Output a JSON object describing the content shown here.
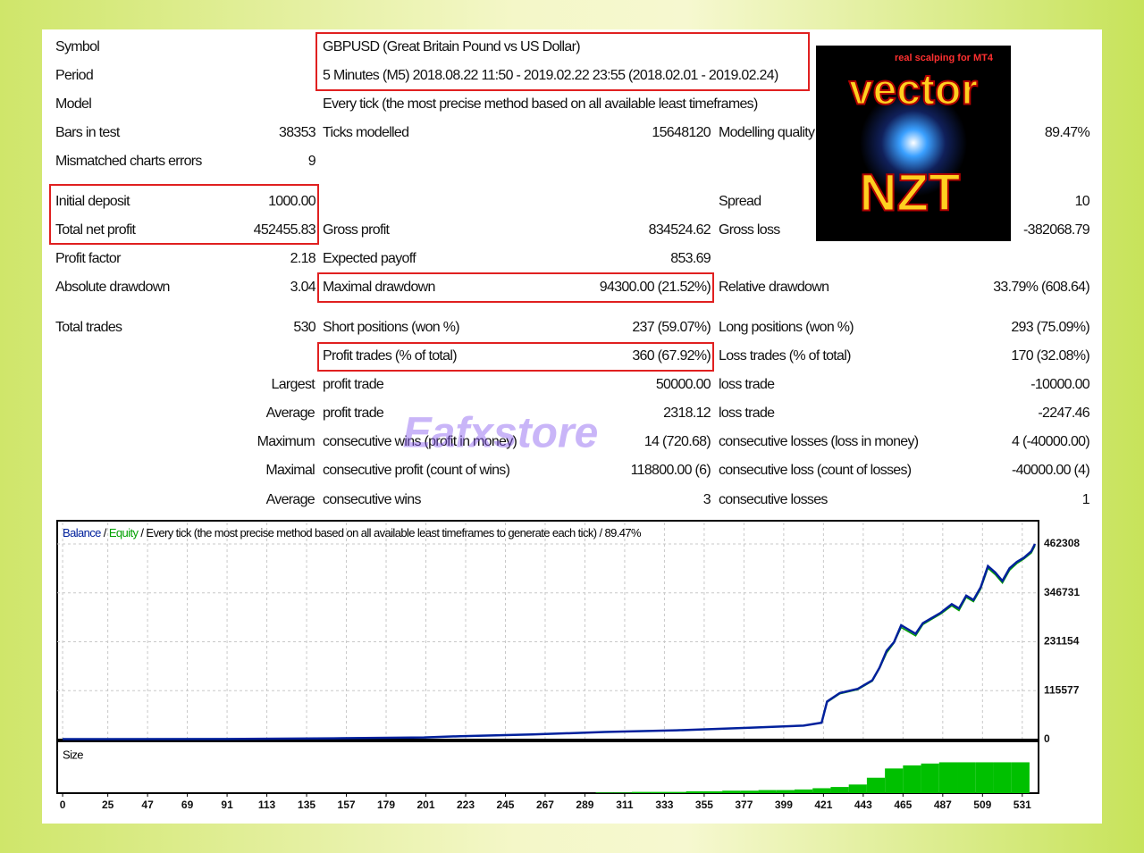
{
  "report": {
    "rows": [
      [
        "Symbol",
        "GBPUSD (Great Britain Pound vs US Dollar)"
      ],
      [
        "Period",
        "5 Minutes (M5) 2018.08.22 11:50 - 2019.02.22 23:55 (2018.02.01 - 2019.02.24)"
      ],
      [
        "Model",
        "Every tick (the most precise method based on all available least timeframes)"
      ],
      [
        "Bars in test",
        "38353",
        "Ticks modelled",
        "15648120",
        "Modelling quality",
        "89.47%"
      ],
      [
        "Mismatched charts errors",
        "9"
      ],
      [
        "Initial deposit",
        "1000.00",
        "Spread",
        "10"
      ],
      [
        "Total net profit",
        "452455.83",
        "Gross profit",
        "834524.62",
        "Gross loss",
        "-382068.79"
      ],
      [
        "Profit factor",
        "2.18",
        "Expected payoff",
        "853.69"
      ],
      [
        "Absolute drawdown",
        "3.04",
        "Maximal drawdown",
        "94300.00 (21.52%)",
        "Relative drawdown",
        "33.79% (608.64)"
      ],
      [
        "Total trades",
        "530",
        "Short positions (won %)",
        "237 (59.07%)",
        "Long positions (won %)",
        "293 (75.09%)"
      ],
      [
        "Profit trades (% of total)",
        "360 (67.92%)",
        "Loss trades (% of total)",
        "170 (32.08%)"
      ],
      [
        "Largest",
        "profit trade",
        "50000.00",
        "loss trade",
        "-10000.00"
      ],
      [
        "Average",
        "profit trade",
        "2318.12",
        "loss trade",
        "-2247.46"
      ],
      [
        "Maximum",
        "consecutive wins (profit in money)",
        "14 (720.68)",
        "consecutive losses (loss in money)",
        "4 (-40000.00)"
      ],
      [
        "Maximal",
        "consecutive profit (count of wins)",
        "118800.00 (6)",
        "consecutive loss (count of losses)",
        "-40000.00 (4)"
      ],
      [
        "Average",
        "consecutive wins",
        "3",
        "consecutive losses",
        "1"
      ]
    ]
  },
  "logo": {
    "tagline": "real scalping for MT4",
    "name": "vector",
    "brand": "NZT"
  },
  "watermark": "Eafxstore",
  "chart_data": [
    {
      "type": "line",
      "separator": "/",
      "subtitle": "/ Every tick (the most precise method based on all available least timeframes to generate each tick) / 89.47%",
      "x": [
        0,
        100,
        150,
        200,
        220,
        260,
        300,
        340,
        380,
        410,
        420,
        423,
        430,
        440,
        448,
        452,
        456,
        460,
        464,
        468,
        472,
        476,
        480,
        486,
        492,
        496,
        500,
        504,
        508,
        512,
        516,
        520,
        524,
        528,
        532,
        536,
        538
      ],
      "series": [
        {
          "name": "Balance",
          "color": "#00209c",
          "values": [
            1000,
            1500,
            3000,
            5000,
            8000,
            12000,
            18000,
            22000,
            28000,
            33000,
            40000,
            90000,
            110000,
            120000,
            140000,
            170000,
            210000,
            230000,
            270000,
            260000,
            250000,
            275000,
            285000,
            300000,
            320000,
            310000,
            340000,
            330000,
            360000,
            410000,
            395000,
            375000,
            405000,
            420000,
            430000,
            445000,
            462308
          ]
        },
        {
          "name": "Equity",
          "color": "#00a000",
          "values": [
            1000,
            1500,
            3000,
            5000,
            8000,
            12000,
            18000,
            22000,
            28000,
            33000,
            40000,
            88000,
            108000,
            118000,
            138000,
            168000,
            205000,
            228000,
            265000,
            255000,
            245000,
            272000,
            282000,
            297000,
            316000,
            305000,
            336000,
            326000,
            356000,
            405000,
            390000,
            370000,
            400000,
            416000,
            427000,
            441000,
            458000
          ]
        }
      ],
      "xlim": [
        -3,
        540
      ],
      "ylim": [
        0,
        513000
      ],
      "yticks": [
        0,
        115577,
        231154,
        346731,
        462308
      ],
      "grid": true
    },
    {
      "type": "bar",
      "title": "Size",
      "color": "#00c000",
      "x": [
        300,
        310,
        320,
        330,
        340,
        350,
        360,
        370,
        380,
        390,
        400,
        410,
        420,
        430,
        440,
        450,
        460,
        470,
        480,
        490,
        500,
        510,
        520,
        530
      ],
      "values": [
        1,
        1,
        2,
        2,
        2,
        3,
        3,
        4,
        4,
        5,
        5,
        6,
        8,
        10,
        14,
        25,
        40,
        45,
        48,
        50,
        50,
        50,
        50,
        50
      ],
      "xlim": [
        -3,
        540
      ],
      "ylim": [
        0,
        55
      ],
      "xticks": [
        0,
        25,
        47,
        69,
        91,
        113,
        135,
        157,
        179,
        201,
        223,
        245,
        267,
        289,
        311,
        333,
        355,
        377,
        399,
        421,
        443,
        465,
        487,
        509,
        531
      ]
    }
  ]
}
